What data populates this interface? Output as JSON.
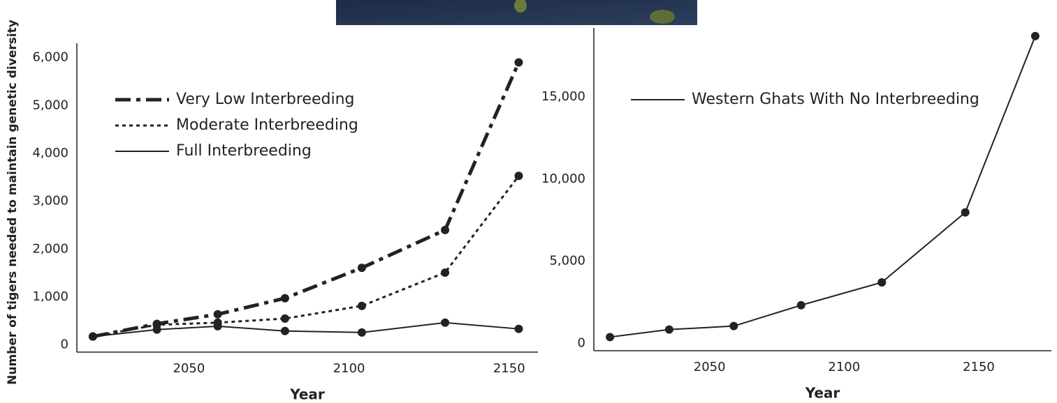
{
  "chart_data": [
    {
      "type": "line",
      "x_label": "Year",
      "y_label": "Number of tigers needed to maintain genetic diversity",
      "x": [
        2020,
        2040,
        2059,
        2080,
        2104,
        2130,
        2153
      ],
      "xlim": [
        2015,
        2159
      ],
      "xticks": [
        2050,
        2100,
        2150
      ],
      "ylim": [
        -150,
        6300
      ],
      "yticks": [
        0,
        {
          "value": 1000,
          "label": "1,000"
        },
        {
          "value": 2000,
          "label": "2,000"
        },
        {
          "value": 3000,
          "label": "3,000"
        },
        {
          "value": 4000,
          "label": "4,000"
        },
        {
          "value": 5000,
          "label": "5,000"
        },
        {
          "value": 6000,
          "label": "6,000"
        }
      ],
      "series": [
        {
          "name": "Very Low Interbreeding",
          "color": "#222222",
          "linestyle": "dashdot",
          "values": [
            175,
            440,
            640,
            975,
            1610,
            2400,
            5900
          ]
        },
        {
          "name": "Moderate Interbreeding",
          "color": "#222222",
          "linestyle": "dotted",
          "values": [
            175,
            420,
            465,
            550,
            815,
            1510,
            3530
          ]
        },
        {
          "name": "Full Interbreeding",
          "color": "#222222",
          "linestyle": "solid",
          "values": [
            175,
            320,
            390,
            290,
            260,
            465,
            335
          ]
        }
      ]
    },
    {
      "type": "line",
      "x_label": "Year",
      "x": [
        2013,
        2035,
        2059,
        2084,
        2114,
        2145,
        2171
      ],
      "xlim": [
        2007,
        2177
      ],
      "xticks": [
        2050,
        2100,
        2150
      ],
      "ylim": [
        -450,
        19200
      ],
      "yticks": [
        0,
        {
          "value": 5000,
          "label": "5,000"
        },
        {
          "value": 10000,
          "label": "10,000"
        },
        {
          "value": 15000,
          "label": "15,000"
        }
      ],
      "series": [
        {
          "name": "Western Ghats With No Interbreeding",
          "color": "#222222",
          "linestyle": "solid",
          "values": [
            380,
            840,
            1050,
            2320,
            3710,
            7970,
            18700
          ]
        }
      ]
    }
  ]
}
